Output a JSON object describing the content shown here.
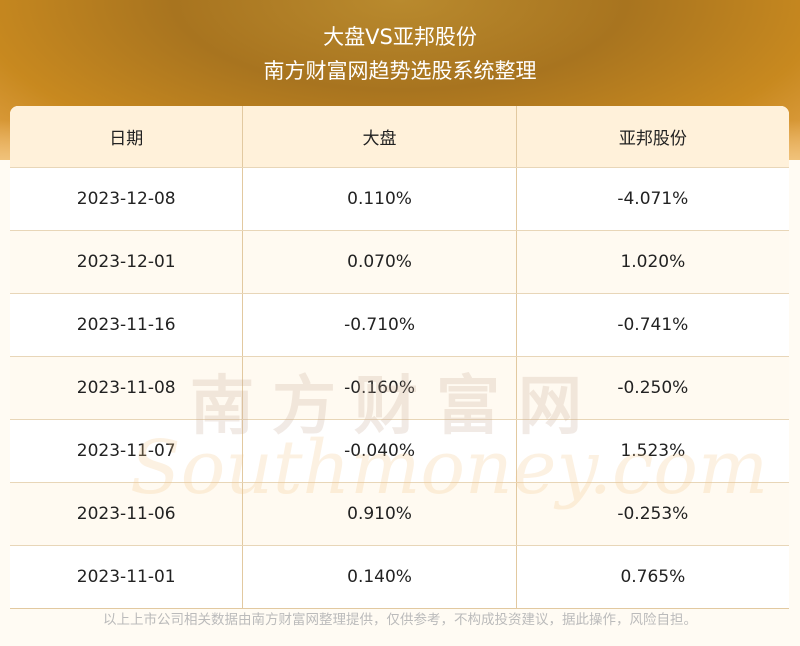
{
  "header": {
    "title": "大盘VS亚邦股份",
    "subtitle": "南方财富网趋势选股系统整理"
  },
  "table": {
    "columns": [
      "日期",
      "大盘",
      "亚邦股份"
    ],
    "rows": [
      [
        "2023-12-08",
        "0.110%",
        "-4.071%"
      ],
      [
        "2023-12-01",
        "0.070%",
        "1.020%"
      ],
      [
        "2023-11-16",
        "-0.710%",
        "-0.741%"
      ],
      [
        "2023-11-08",
        "-0.160%",
        "-0.250%"
      ],
      [
        "2023-11-07",
        "-0.040%",
        "1.523%"
      ],
      [
        "2023-11-06",
        "0.910%",
        "-0.253%"
      ],
      [
        "2023-11-01",
        "0.140%",
        "0.765%"
      ]
    ]
  },
  "watermark": {
    "cn": "南方财富网",
    "en": "Southmoney.com"
  },
  "footer": {
    "disclaimer": "以上上市公司相关数据由南方财富网整理提供，仅供参考，不构成投资建议，据此操作，风险自担。"
  },
  "colors": {
    "banner": "#a8741f",
    "header_bg": "#fff1da",
    "border": "#e2c9a0"
  }
}
